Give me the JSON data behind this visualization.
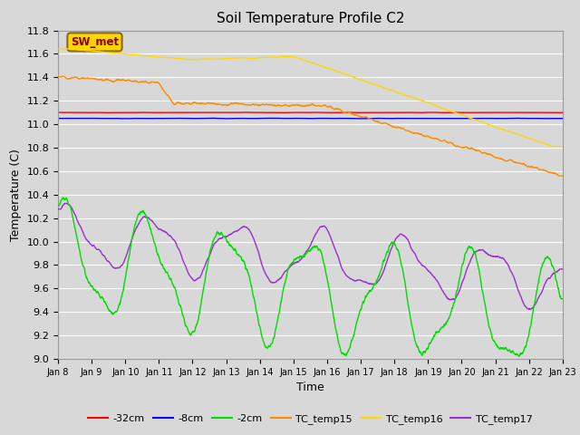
{
  "title": "Soil Temperature Profile C2",
  "xlabel": "Time",
  "ylabel": "Temperature (C)",
  "ylim": [
    9.0,
    11.8
  ],
  "yticks": [
    9.0,
    9.2,
    9.4,
    9.6,
    9.8,
    10.0,
    10.2,
    10.4,
    10.6,
    10.8,
    11.0,
    11.2,
    11.4,
    11.6,
    11.8
  ],
  "n_points": 2000,
  "background_color": "#d8d8d8",
  "plot_bg_color": "#d8d8d8",
  "grid_color": "#ffffff",
  "colors": {
    "TC_temp15": "#ff8c00",
    "TC_temp16": "#ffd700",
    "TC_temp17": "#9932cc",
    "neg2cm": "#00dd00",
    "neg8cm": "#0000ff",
    "neg32cm": "#ff0000"
  },
  "annotation_text": "SW_met",
  "annotation_color": "#8b0000",
  "annotation_bg": "#ffd700",
  "annotation_edge": "#8b6914",
  "xtick_labels": [
    "Jan 8",
    "Jan 9",
    "Jan 10",
    "Jan 11",
    "Jan 12",
    "Jan 13",
    "Jan 14",
    "Jan 15",
    "Jan 16",
    "Jan 17",
    "Jan 18",
    "Jan 19",
    "Jan 20",
    "Jan 21",
    "Jan 22",
    "Jan 23"
  ],
  "legend_labels": [
    "-32cm",
    "-8cm",
    "-2cm",
    "TC_temp15",
    "TC_temp16",
    "TC_temp17"
  ]
}
